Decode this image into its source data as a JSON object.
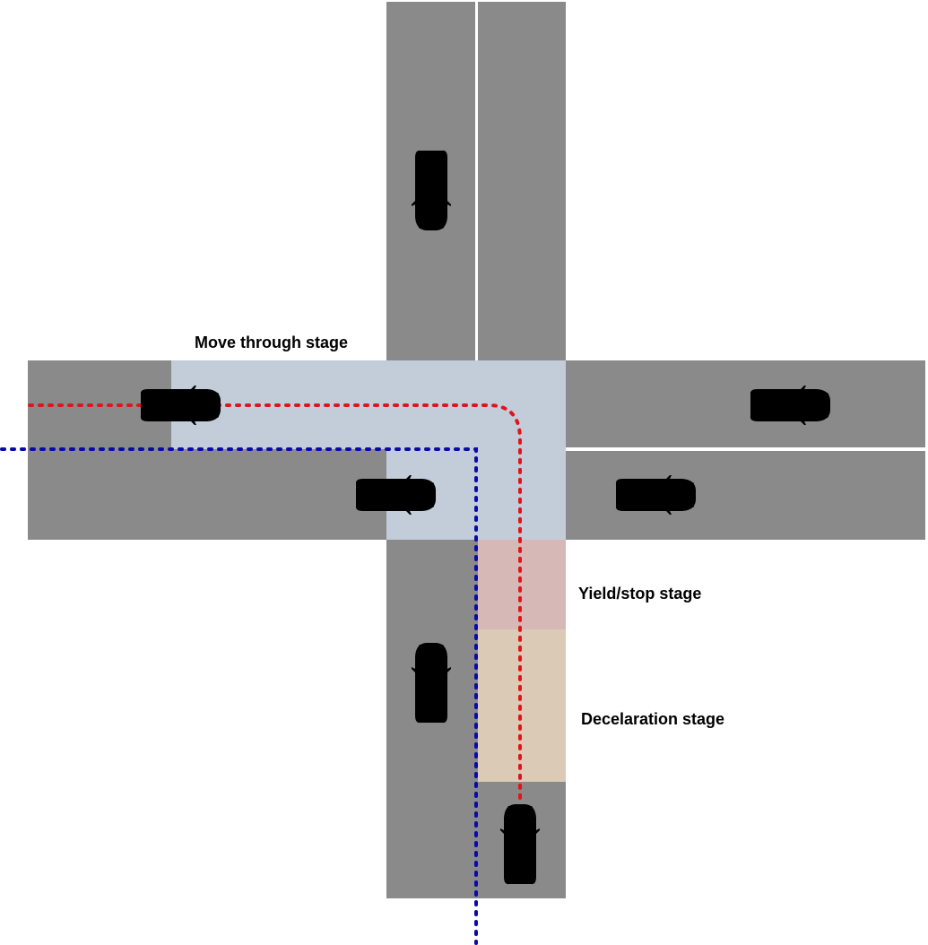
{
  "labels": {
    "move_through": "Move through stage",
    "yield_stop": "Yield/stop stage",
    "deceleration": "Decelaration stage"
  },
  "colors": {
    "road": "#8a8a8a",
    "lane_divider": "#ffffff",
    "move_through_zone": "#c3ccd9",
    "yield_stop_zone": "#d6b9b7",
    "deceleration_zone": "#dacab6",
    "ego_vehicle": "#e0262a",
    "other_vehicle": "#000000",
    "ego_path": "#e0141a",
    "other_path": "#0a0aa8"
  },
  "icons": {
    "vehicle": "car-top-view-icon",
    "ego_vehicle": "red-car-top-view-icon"
  }
}
